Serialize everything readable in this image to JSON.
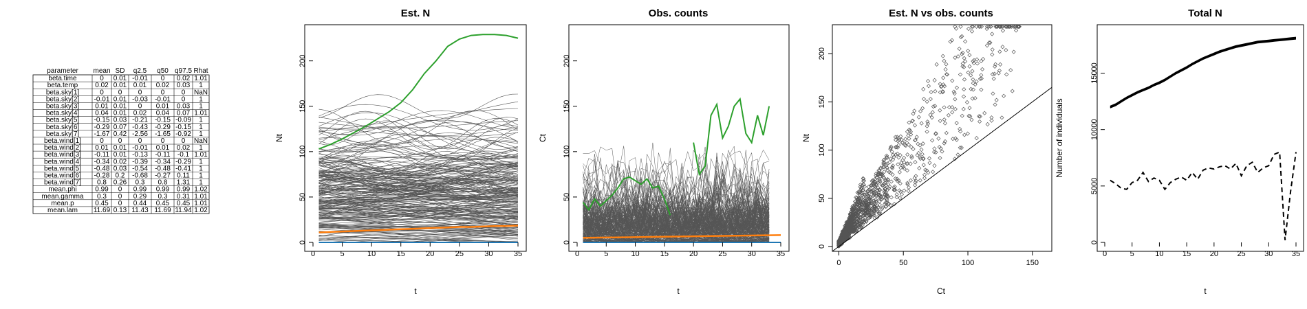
{
  "colors": {
    "gray": "#555555",
    "green": "#2ca02c",
    "orange": "#ff7f0e",
    "blue": "#1f77b4",
    "black": "#000000"
  },
  "table": {
    "headers": [
      "parameter",
      "mean",
      "SD",
      "q2.5",
      "q50",
      "q97.5",
      "Rhat"
    ],
    "rows": [
      [
        "beta.time",
        "0",
        "0.01",
        "-0.01",
        "0",
        "0.02",
        "1.01"
      ],
      [
        "beta.temp",
        "0.02",
        "0.01",
        "0.01",
        "0.02",
        "0.03",
        "1"
      ],
      [
        "beta.sky[1]",
        "0",
        "0",
        "0",
        "0",
        "0",
        "NaN"
      ],
      [
        "beta.sky[2]",
        "-0.01",
        "0.01",
        "-0.03",
        "-0.01",
        "0",
        "1"
      ],
      [
        "beta.sky[3]",
        "0.01",
        "0.01",
        "0",
        "0.01",
        "0.03",
        "1"
      ],
      [
        "beta.sky[4]",
        "0.04",
        "0.01",
        "0.02",
        "0.04",
        "0.07",
        "1.01"
      ],
      [
        "beta.sky[5]",
        "-0.15",
        "0.03",
        "-0.21",
        "-0.15",
        "-0.09",
        "1"
      ],
      [
        "beta.sky[6]",
        "-0.29",
        "0.07",
        "-0.43",
        "-0.29",
        "-0.15",
        "1"
      ],
      [
        "beta.sky[7]",
        "-1.67",
        "0.42",
        "-2.56",
        "-1.65",
        "-0.92",
        "1"
      ],
      [
        "beta.wind[1]",
        "0",
        "0",
        "0",
        "0",
        "0",
        "NaN"
      ],
      [
        "beta.wind[2]",
        "0.01",
        "0.01",
        "-0.01",
        "0.01",
        "0.02",
        "1"
      ],
      [
        "beta.wind[3]",
        "-0.11",
        "0.01",
        "-0.13",
        "-0.11",
        "-0.1",
        "1.01"
      ],
      [
        "beta.wind[4]",
        "-0.34",
        "0.02",
        "-0.39",
        "-0.34",
        "-0.29",
        "1"
      ],
      [
        "beta.wind[5]",
        "-0.48",
        "0.03",
        "-0.54",
        "-0.48",
        "-0.41",
        "1"
      ],
      [
        "beta.wind[6]",
        "-0.28",
        "0.2",
        "-0.68",
        "-0.27",
        "0.11",
        "1"
      ],
      [
        "beta.wind[7]",
        "0.8",
        "0.26",
        "0.3",
        "0.8",
        "1.31",
        "1"
      ],
      [
        "mean.phi",
        "0.99",
        "0",
        "0.99",
        "0.99",
        "0.99",
        "1.02"
      ],
      [
        "mean.gamma",
        "0.3",
        "0",
        "0.29",
        "0.3",
        "0.31",
        "1.01"
      ],
      [
        "mean.p",
        "0.45",
        "0",
        "0.44",
        "0.45",
        "0.45",
        "1.01"
      ],
      [
        "mean.lam",
        "11.69",
        "0.13",
        "11.43",
        "11.69",
        "11.94",
        "1.02"
      ]
    ]
  },
  "chart_data": [
    {
      "type": "line",
      "title": "Est. N",
      "xlabel": "t",
      "ylabel": "Nt",
      "xlim": [
        0,
        35
      ],
      "ylim": [
        0,
        230
      ],
      "xticks": [
        0,
        5,
        10,
        15,
        20,
        25,
        30,
        35
      ],
      "yticks": [
        0,
        50,
        100,
        150,
        200
      ],
      "x": [
        1,
        3,
        5,
        7,
        9,
        11,
        13,
        15,
        17,
        19,
        21,
        23,
        25,
        27,
        29,
        31,
        33,
        35
      ],
      "highlight_green": [
        103,
        108,
        114,
        121,
        128,
        136,
        144,
        154,
        168,
        186,
        200,
        216,
        224,
        228,
        229,
        229,
        228,
        225
      ],
      "highlight_orange": [
        11,
        11.5,
        12,
        12.5,
        13,
        13.5,
        14,
        14.5,
        15,
        15.5,
        16,
        16.5,
        17,
        17,
        17.5,
        18,
        18,
        18.5
      ],
      "highlight_blue": [
        0,
        0,
        0,
        0,
        0,
        0,
        0,
        0,
        0,
        0,
        0,
        0,
        0,
        0,
        0,
        0,
        0,
        0
      ],
      "background_note": "many gray site trajectories spanning 0-180"
    },
    {
      "type": "line",
      "title": "Obs. counts",
      "xlabel": "t",
      "ylabel": "Ct",
      "xlim": [
        0,
        35
      ],
      "ylim": [
        0,
        230
      ],
      "xticks": [
        0,
        5,
        10,
        15,
        20,
        25,
        30,
        35
      ],
      "yticks": [
        0,
        50,
        100,
        150,
        200
      ],
      "green_x": [
        1,
        2,
        3,
        4,
        5,
        6,
        7,
        8,
        9,
        10,
        11,
        12,
        13,
        14,
        15,
        16,
        17,
        18,
        19,
        20,
        21,
        22,
        23,
        24,
        25,
        26,
        27,
        28,
        29,
        30,
        31,
        32,
        33
      ],
      "green_y": [
        44,
        36,
        48,
        40,
        46,
        52,
        60,
        70,
        72,
        68,
        64,
        70,
        60,
        62,
        48,
        30,
        null,
        null,
        null,
        110,
        75,
        84,
        140,
        152,
        115,
        128,
        150,
        158,
        120,
        110,
        140,
        118,
        150
      ],
      "highlight_orange_x": [
        1,
        35
      ],
      "highlight_orange_y": [
        5,
        8
      ],
      "background_note": "many gray count trajectories spanning 0-110"
    },
    {
      "type": "scatter",
      "title": "Est. N vs obs. counts",
      "xlabel": "Ct",
      "ylabel": "Nt",
      "xlim": [
        -5,
        165
      ],
      "ylim": [
        -5,
        230
      ],
      "xticks": [
        0,
        50,
        100,
        150
      ],
      "yticks": [
        0,
        50,
        100,
        150,
        200
      ],
      "reference_line": "y = x"
    },
    {
      "type": "line",
      "title": "Total N",
      "xlabel": "t",
      "ylabel": "Number of individuals",
      "xlim": [
        0,
        35
      ],
      "ylim": [
        0,
        18500
      ],
      "xticks": [
        0,
        5,
        10,
        15,
        20,
        25,
        30,
        35
      ],
      "yticks": [
        0,
        5000,
        10000,
        15000
      ],
      "x": [
        1,
        2,
        3,
        4,
        5,
        6,
        7,
        8,
        9,
        10,
        11,
        12,
        13,
        14,
        15,
        16,
        17,
        18,
        19,
        20,
        21,
        22,
        23,
        24,
        25,
        26,
        27,
        28,
        29,
        30,
        31,
        32,
        33,
        34,
        35
      ],
      "est_total": [
        12000,
        12200,
        12500,
        12800,
        13050,
        13300,
        13500,
        13700,
        13950,
        14150,
        14400,
        14700,
        15000,
        15250,
        15500,
        15800,
        16050,
        16300,
        16500,
        16700,
        16900,
        17050,
        17200,
        17350,
        17450,
        17550,
        17650,
        17750,
        17800,
        17850,
        17900,
        17950,
        18000,
        18050,
        18100
      ],
      "obs_total": [
        5500,
        5200,
        4800,
        4700,
        5300,
        5500,
        6200,
        5400,
        5700,
        5500,
        4700,
        5300,
        5600,
        5800,
        5500,
        6200,
        5600,
        6400,
        6600,
        6500,
        6700,
        6800,
        6500,
        7000,
        5900,
        6800,
        7100,
        6200,
        6600,
        6800,
        7800,
        8000,
        200,
        4500,
        8000
      ]
    }
  ]
}
